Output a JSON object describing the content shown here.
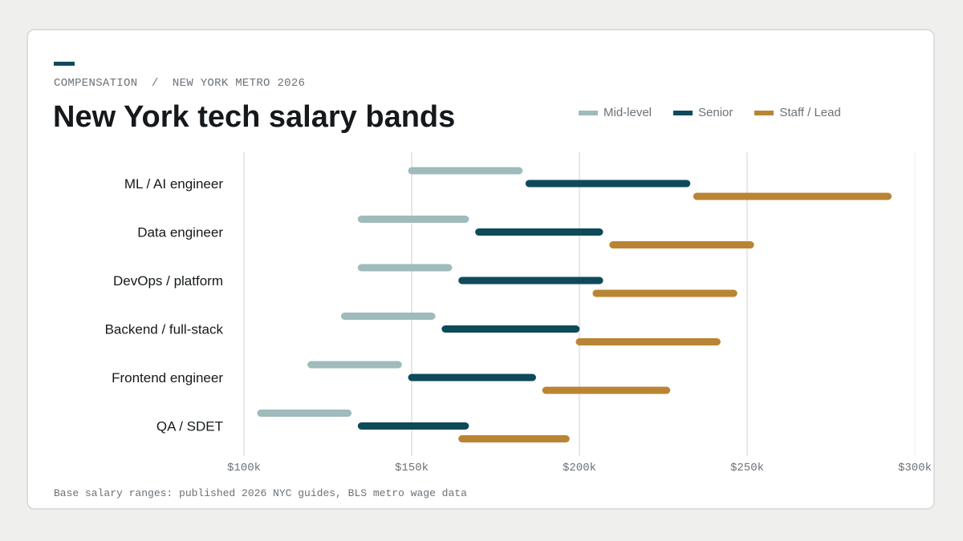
{
  "header": {
    "eyebrow": "COMPENSATION  /  NEW YORK METRO 2026",
    "title": "New York tech salary bands"
  },
  "footer": {
    "source": "Base salary ranges: published 2026 NYC guides, BLS metro wage data"
  },
  "colors": {
    "mid": "#9fbbbb",
    "senior": "#0e4a5a",
    "staff": "#b98433",
    "accent": "#0e4a5a"
  },
  "chart_data": {
    "type": "range-bar",
    "title": "New York tech salary bands",
    "categories": [
      "ML / AI engineer",
      "Data engineer",
      "DevOps / platform",
      "Backend / full-stack",
      "Frontend engineer",
      "QA / SDET"
    ],
    "series": [
      {
        "name": "Mid-level",
        "color": "#9fbbbb",
        "ranges": [
          [
            150,
            182
          ],
          [
            135,
            166
          ],
          [
            135,
            161
          ],
          [
            130,
            156
          ],
          [
            120,
            146
          ],
          [
            105,
            131
          ]
        ]
      },
      {
        "name": "Senior",
        "color": "#0e4a5a",
        "ranges": [
          [
            185,
            232
          ],
          [
            170,
            206
          ],
          [
            165,
            206
          ],
          [
            160,
            199
          ],
          [
            150,
            186
          ],
          [
            135,
            166
          ]
        ]
      },
      {
        "name": "Staff / Lead",
        "color": "#b98433",
        "ranges": [
          [
            235,
            292
          ],
          [
            210,
            251
          ],
          [
            205,
            246
          ],
          [
            200,
            241
          ],
          [
            190,
            226
          ],
          [
            165,
            196
          ]
        ]
      }
    ],
    "x_axis": {
      "min": 100,
      "max": 300,
      "ticks": [
        100,
        150,
        200,
        250,
        300
      ],
      "tick_labels": [
        "$100k",
        "$150k",
        "$200k",
        "$250k",
        "$300k"
      ]
    },
    "grid": true,
    "legend_position": "top-right"
  }
}
